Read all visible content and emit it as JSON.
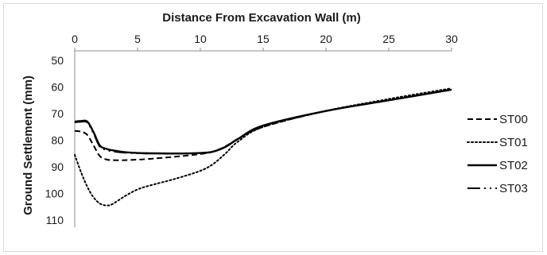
{
  "chart_data": {
    "type": "line",
    "xlabel": "Distance From Excavation Wall (m)",
    "ylabel": "Ground Settlement (mm)",
    "xlim": [
      0,
      30
    ],
    "ylim": [
      50,
      110
    ],
    "y_inverted": true,
    "x_axis_position": "top",
    "grid": false,
    "legend_position": "right",
    "x_ticks": [
      "0",
      "5",
      "10",
      "15",
      "20",
      "25",
      "30"
    ],
    "y_ticks": [
      "50",
      "60",
      "70",
      "80",
      "90",
      "100",
      "110"
    ],
    "series": [
      {
        "name": "ST00",
        "line_style": "dashed",
        "x": [
          0,
          0.5,
          1,
          1.5,
          2,
          2.5,
          3,
          4,
          5,
          6,
          8,
          10,
          11,
          12,
          13,
          15,
          20,
          25,
          30
        ],
        "y": [
          76.5,
          76.8,
          78,
          82,
          86,
          87.2,
          87.5,
          87.5,
          87.3,
          87,
          86.2,
          85.2,
          84.3,
          82.3,
          79.5,
          75,
          69,
          65,
          61
        ]
      },
      {
        "name": "ST01",
        "line_style": "dotted",
        "x": [
          0,
          0.5,
          1,
          1.5,
          2,
          2.5,
          3,
          4,
          5,
          6,
          8,
          10,
          11,
          12,
          13,
          15,
          20,
          25,
          30
        ],
        "y": [
          85.5,
          92,
          97.5,
          101.5,
          103.8,
          104.5,
          104,
          101,
          98.5,
          97,
          94.5,
          91.5,
          89,
          85,
          80.5,
          75,
          69,
          64.5,
          60.5
        ]
      },
      {
        "name": "ST02",
        "line_style": "solid",
        "x": [
          0,
          0.5,
          1,
          1.5,
          2,
          2.5,
          3,
          4,
          5,
          6,
          8,
          10,
          11,
          12,
          13,
          15,
          20,
          25,
          30
        ],
        "y": [
          73,
          72.8,
          73,
          77,
          82,
          83.2,
          83.8,
          84.5,
          84.8,
          84.9,
          85,
          84.8,
          84.3,
          82.5,
          79.5,
          74.5,
          69,
          65,
          61
        ]
      },
      {
        "name": "ST03",
        "line_style": "dash-dot-dot",
        "x": [
          0,
          0.5,
          1,
          1.5,
          2,
          2.5,
          3,
          4,
          5,
          6,
          8,
          10,
          11,
          12,
          13,
          15,
          20,
          25,
          30
        ],
        "y": [
          73.3,
          73.1,
          73.4,
          77.5,
          82.5,
          83.6,
          84.2,
          84.7,
          84.9,
          85,
          85,
          84.8,
          84.3,
          82.5,
          79.5,
          74.5,
          69,
          65,
          61
        ]
      }
    ]
  },
  "colors": {
    "line": "#000000",
    "text": "#1a1a1a",
    "frame": "#d9d9d9",
    "axis": "#8c8c8c"
  }
}
